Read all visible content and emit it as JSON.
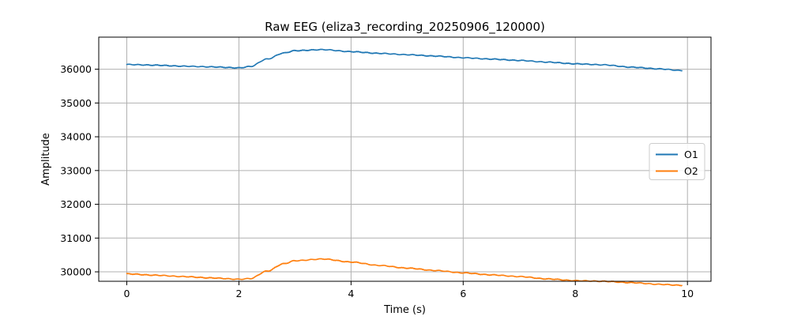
{
  "chart_data": {
    "type": "line",
    "title": "Raw EEG (eliza3_recording_20250906_120000)",
    "xlabel": "Time (s)",
    "ylabel": "Amplitude",
    "xlim": [
      -0.5,
      10.42
    ],
    "ylim": [
      29720,
      36950
    ],
    "x_ticks": [
      0,
      2,
      4,
      6,
      8,
      10
    ],
    "x_tick_labels": [
      "0",
      "2",
      "4",
      "6",
      "8",
      "10"
    ],
    "y_ticks": [
      30000,
      31000,
      32000,
      33000,
      34000,
      35000,
      36000
    ],
    "y_tick_labels": [
      "30000",
      "31000",
      "32000",
      "33000",
      "34000",
      "35000",
      "36000"
    ],
    "grid": true,
    "legend_position": "center-right",
    "x": [
      0,
      0.5,
      1,
      1.5,
      2,
      2.2,
      2.5,
      2.8,
      3,
      3.5,
      4,
      4.5,
      5,
      5.5,
      6,
      6.5,
      7,
      7.5,
      8,
      8.5,
      9,
      9.5,
      9.9
    ],
    "series": [
      {
        "name": "O1",
        "color": "#1f77b4",
        "values": [
          36140,
          36120,
          36090,
          36070,
          36040,
          36080,
          36300,
          36480,
          36550,
          36580,
          36520,
          36470,
          36430,
          36390,
          36340,
          36300,
          36260,
          36210,
          36160,
          36130,
          36060,
          36010,
          35960
        ]
      },
      {
        "name": "O2",
        "color": "#ff7f0e",
        "values": [
          29940,
          29900,
          29860,
          29820,
          29780,
          29800,
          30020,
          30240,
          30330,
          30380,
          30290,
          30190,
          30110,
          30040,
          29970,
          29910,
          29860,
          29790,
          29740,
          29720,
          29680,
          29630,
          29600
        ]
      }
    ]
  }
}
